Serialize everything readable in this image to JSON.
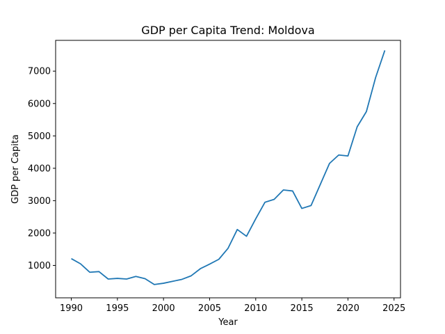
{
  "chart_data": {
    "type": "line",
    "title": "GDP per Capita Trend: Moldova",
    "xlabel": "Year",
    "ylabel": "GDP per Capita",
    "xlim": [
      1988.3,
      2025.7
    ],
    "ylim": [
      0,
      7950
    ],
    "xticks": [
      1990,
      1995,
      2000,
      2005,
      2010,
      2015,
      2020,
      2025
    ],
    "yticks": [
      1000,
      2000,
      3000,
      4000,
      5000,
      6000,
      7000
    ],
    "grid": false,
    "series": [
      {
        "color": "#1f77b4",
        "x": [
          1990,
          1991,
          1992,
          1993,
          1994,
          1995,
          1996,
          1997,
          1998,
          1999,
          2000,
          2001,
          2002,
          2003,
          2004,
          2005,
          2006,
          2007,
          2008,
          2009,
          2010,
          2011,
          2012,
          2013,
          2014,
          2015,
          2016,
          2017,
          2018,
          2019,
          2020,
          2021,
          2022,
          2023,
          2024
        ],
        "y": [
          1210,
          1050,
          790,
          810,
          580,
          600,
          580,
          660,
          590,
          410,
          450,
          510,
          570,
          680,
          900,
          1040,
          1190,
          1530,
          2110,
          1900,
          2440,
          2950,
          3040,
          3330,
          3300,
          2760,
          2850,
          3500,
          4150,
          4410,
          4380,
          5280,
          5750,
          6800,
          7640
        ]
      }
    ]
  }
}
